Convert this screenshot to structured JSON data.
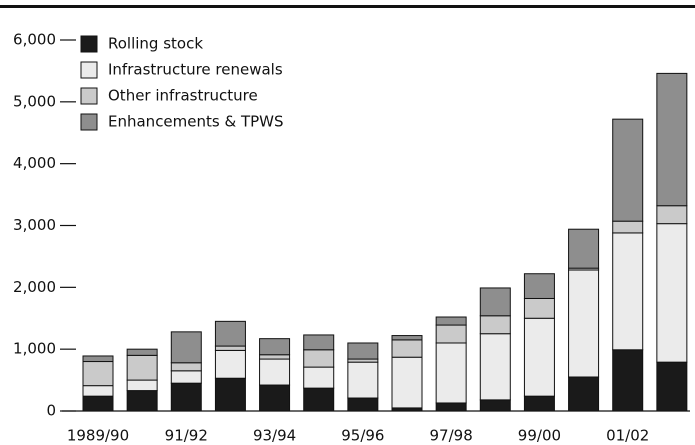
{
  "chart_data": {
    "type": "stacked_bar",
    "categories": [
      "1989/90",
      null,
      "91/92",
      null,
      "93/94",
      null,
      "95/96",
      null,
      "97/98",
      null,
      "99/00",
      null,
      "01/02",
      null
    ],
    "series": [
      {
        "name": "Rolling stock",
        "color": "#1a1a1a",
        "values": [
          240,
          330,
          450,
          530,
          420,
          370,
          210,
          50,
          130,
          180,
          240,
          550,
          990,
          790
        ]
      },
      {
        "name": "Infrastructure renewals",
        "color": "#ebebeb",
        "values": [
          170,
          170,
          200,
          450,
          420,
          340,
          580,
          820,
          970,
          1070,
          1260,
          1730,
          1890,
          2240
        ]
      },
      {
        "name": "Other infrastructure",
        "color": "#cacaca",
        "values": [
          390,
          400,
          130,
          70,
          70,
          280,
          50,
          280,
          290,
          290,
          320,
          30,
          190,
          290
        ]
      },
      {
        "name": "Enhancements & TPWS",
        "color": "#8e8e8e",
        "values": [
          90,
          100,
          500,
          400,
          260,
          240,
          260,
          70,
          130,
          450,
          400,
          630,
          1650,
          2140
        ]
      }
    ],
    "ylim": [
      0,
      6000
    ],
    "yticks": [
      0,
      {
        "value": 1000,
        "label": "1,000"
      },
      {
        "value": 2000,
        "label": "2,000"
      },
      {
        "value": 3000,
        "label": "3,000"
      },
      {
        "value": 4000,
        "label": "4,000"
      },
      {
        "value": 5000,
        "label": "5,000"
      },
      {
        "value": 6000,
        "label": "6,000"
      }
    ],
    "legend": "top-left"
  }
}
